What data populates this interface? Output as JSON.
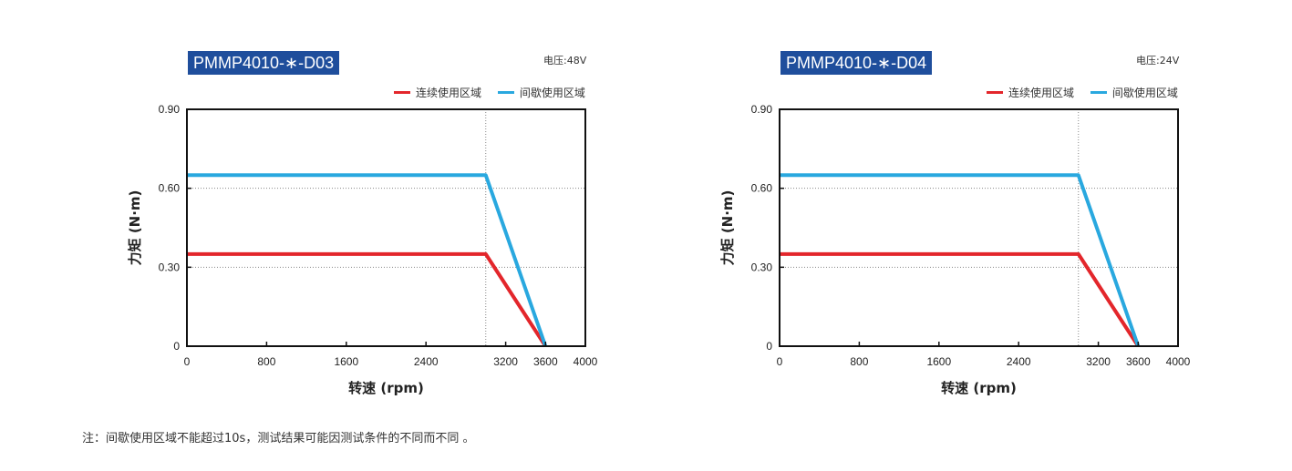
{
  "note": "注：间歇使用区域不能超过10s，测试结果可能因测试条件的不同而不同 。",
  "colors": {
    "continuous": "#e3262b",
    "intermittent": "#29a8df",
    "title_bg": "#1f4e9c"
  },
  "chart_data": [
    {
      "type": "line",
      "title": "PMMP4010-∗-D03",
      "voltage": "电压:48V",
      "xlabel": "转速 (rpm)",
      "ylabel": "力矩 (N·m)",
      "xlim": [
        0,
        4000
      ],
      "ylim": [
        0,
        0.9
      ],
      "xticks": [
        "0",
        "800",
        "1600",
        "2400",
        "3200",
        "3600",
        "4000"
      ],
      "xtick_values": [
        0,
        800,
        1600,
        2400,
        3200,
        3600,
        4000
      ],
      "yticks": [
        "0",
        "0.30",
        "0.60",
        "0.90"
      ],
      "ytick_values": [
        0,
        0.3,
        0.6,
        0.9
      ],
      "vline_x": 3000,
      "legend_position": "top-right",
      "series": [
        {
          "name": "连续使用区域",
          "color": "#e3262b",
          "x": [
            0,
            3000,
            3600
          ],
          "y": [
            0.35,
            0.35,
            0.0
          ]
        },
        {
          "name": "间歇使用区域",
          "color": "#29a8df",
          "x": [
            0,
            3000,
            3600
          ],
          "y": [
            0.65,
            0.65,
            0.0
          ]
        }
      ]
    },
    {
      "type": "line",
      "title": "PMMP4010-∗-D04",
      "voltage": "电压:24V",
      "xlabel": "转速 (rpm)",
      "ylabel": "力矩 (N·m)",
      "xlim": [
        0,
        4000
      ],
      "ylim": [
        0,
        0.9
      ],
      "xticks": [
        "0",
        "800",
        "1600",
        "2400",
        "3200",
        "3600",
        "4000"
      ],
      "xtick_values": [
        0,
        800,
        1600,
        2400,
        3200,
        3600,
        4000
      ],
      "yticks": [
        "0",
        "0.30",
        "0.60",
        "0.90"
      ],
      "ytick_values": [
        0,
        0.3,
        0.6,
        0.9
      ],
      "vline_x": 3000,
      "legend_position": "top-right",
      "series": [
        {
          "name": "连续使用区域",
          "color": "#e3262b",
          "x": [
            0,
            3000,
            3600
          ],
          "y": [
            0.35,
            0.35,
            0.0
          ]
        },
        {
          "name": "间歇使用区域",
          "color": "#29a8df",
          "x": [
            0,
            3000,
            3600
          ],
          "y": [
            0.65,
            0.65,
            0.0
          ]
        }
      ]
    }
  ]
}
